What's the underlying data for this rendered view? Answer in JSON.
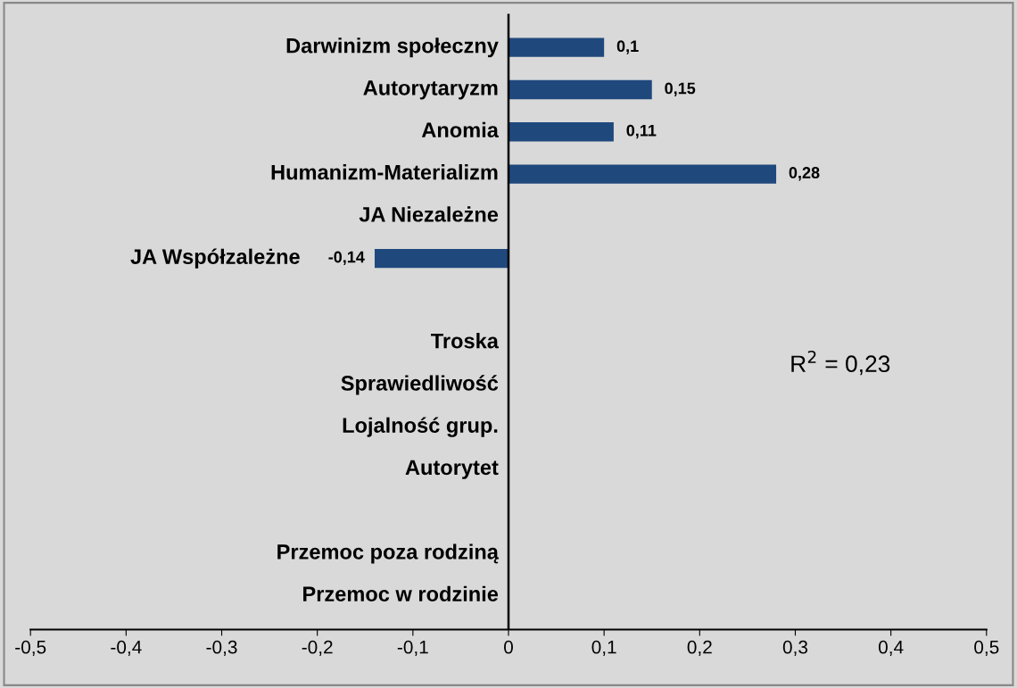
{
  "chart_data": {
    "type": "bar",
    "orientation": "horizontal",
    "categories": [
      "Darwinizm społeczny",
      "Autorytaryzm",
      "Anomia",
      "Humanizm-Materializm",
      "JA Niezależne",
      "JA Współzależne",
      null,
      "Troska",
      "Sprawiedliwość",
      "Lojalność grup.",
      "Autorytet",
      null,
      "Przemoc poza rodziną",
      "Przemoc w rodzinie"
    ],
    "values": [
      0.1,
      0.15,
      0.11,
      0.28,
      null,
      -0.14,
      null,
      null,
      null,
      null,
      null,
      null,
      null,
      null
    ],
    "value_labels": [
      "0,1",
      "0,15",
      "0,11",
      "0,28",
      null,
      "-0,14",
      null,
      null,
      null,
      null,
      null,
      null,
      null,
      null
    ],
    "color": "#1f497d",
    "xlim": [
      -0.5,
      0.5
    ],
    "xticks": [
      {
        "value": -0.5,
        "label": "-0,5"
      },
      {
        "value": -0.4,
        "label": "-0,4"
      },
      {
        "value": -0.3,
        "label": "-0,3"
      },
      {
        "value": -0.2,
        "label": "-0,2"
      },
      {
        "value": -0.1,
        "label": "-0,1"
      },
      0,
      {
        "value": 0.1,
        "label": "0,1"
      },
      {
        "value": 0.2,
        "label": "0,2"
      },
      {
        "value": 0.3,
        "label": "0,3"
      },
      {
        "value": 0.4,
        "label": "0,4"
      },
      {
        "value": 0.5,
        "label": "0,5"
      }
    ],
    "annotations": [
      "R$^{2}$ = 0,23"
    ],
    "grid": false
  }
}
